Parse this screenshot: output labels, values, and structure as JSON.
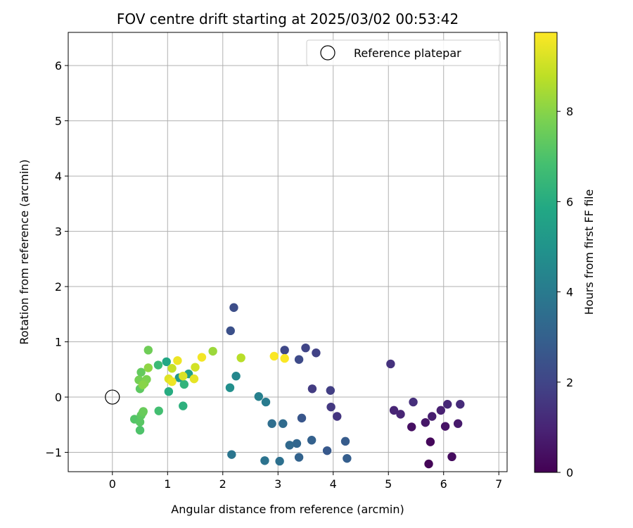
{
  "chart_data": {
    "type": "scatter",
    "title": "FOV centre drift starting at 2025/03/02 00:53:42",
    "xlabel": "Angular distance from reference (arcmin)",
    "ylabel": "Rotation from reference (arcmin)",
    "xlim": [
      -0.8,
      7.15
    ],
    "ylim": [
      -1.35,
      6.6
    ],
    "xticks": [
      0,
      1,
      2,
      3,
      4,
      5,
      6,
      7
    ],
    "yticks": [
      -1,
      0,
      1,
      2,
      3,
      4,
      5,
      6
    ],
    "grid": true,
    "legend": {
      "placement": "upper right",
      "entries": [
        "Reference platepar"
      ]
    },
    "reference_point": {
      "x": 0,
      "y": 0,
      "label": "Reference platepar"
    },
    "colorbar": {
      "label": "Hours from first FF file",
      "range": [
        0,
        9.75
      ],
      "ticks": [
        0,
        2,
        4,
        6,
        8
      ],
      "colormap": "viridis"
    },
    "points": [
      {
        "x": 5.73,
        "y": -1.21,
        "h": 0.1
      },
      {
        "x": 5.76,
        "y": -0.81,
        "h": 0.2
      },
      {
        "x": 6.15,
        "y": -1.08,
        "h": 0.3
      },
      {
        "x": 5.42,
        "y": -0.54,
        "h": 0.4
      },
      {
        "x": 6.03,
        "y": -0.53,
        "h": 0.5
      },
      {
        "x": 5.67,
        "y": -0.46,
        "h": 0.6
      },
      {
        "x": 6.26,
        "y": -0.48,
        "h": 0.7
      },
      {
        "x": 5.79,
        "y": -0.35,
        "h": 0.8
      },
      {
        "x": 5.95,
        "y": -0.24,
        "h": 0.9
      },
      {
        "x": 5.22,
        "y": -0.31,
        "h": 1.0
      },
      {
        "x": 5.1,
        "y": -0.24,
        "h": 1.0
      },
      {
        "x": 6.07,
        "y": -0.13,
        "h": 1.1
      },
      {
        "x": 6.3,
        "y": -0.13,
        "h": 1.2
      },
      {
        "x": 5.45,
        "y": -0.09,
        "h": 1.3
      },
      {
        "x": 5.04,
        "y": 0.6,
        "h": 1.4
      },
      {
        "x": 4.07,
        "y": -0.35,
        "h": 1.5
      },
      {
        "x": 3.96,
        "y": -0.18,
        "h": 1.6
      },
      {
        "x": 3.62,
        "y": 0.15,
        "h": 1.7
      },
      {
        "x": 3.95,
        "y": 0.12,
        "h": 1.8
      },
      {
        "x": 3.69,
        "y": 0.8,
        "h": 1.9
      },
      {
        "x": 3.5,
        "y": 0.89,
        "h": 2.0
      },
      {
        "x": 3.12,
        "y": 0.85,
        "h": 2.1
      },
      {
        "x": 3.38,
        "y": 0.68,
        "h": 2.2
      },
      {
        "x": 2.2,
        "y": 1.62,
        "h": 2.3
      },
      {
        "x": 2.14,
        "y": 1.2,
        "h": 2.4
      },
      {
        "x": 3.43,
        "y": -0.38,
        "h": 2.6
      },
      {
        "x": 3.89,
        "y": -0.97,
        "h": 2.7
      },
      {
        "x": 4.22,
        "y": -0.8,
        "h": 2.8
      },
      {
        "x": 4.25,
        "y": -1.11,
        "h": 2.9
      },
      {
        "x": 3.61,
        "y": -0.78,
        "h": 3.0
      },
      {
        "x": 3.38,
        "y": -1.09,
        "h": 3.1
      },
      {
        "x": 3.34,
        "y": -0.84,
        "h": 3.2
      },
      {
        "x": 3.21,
        "y": -0.87,
        "h": 3.3
      },
      {
        "x": 3.09,
        "y": -0.48,
        "h": 3.4
      },
      {
        "x": 2.89,
        "y": -0.48,
        "h": 3.5
      },
      {
        "x": 3.03,
        "y": -1.16,
        "h": 3.6
      },
      {
        "x": 2.76,
        "y": -1.15,
        "h": 3.7
      },
      {
        "x": 2.16,
        "y": -1.04,
        "h": 3.8
      },
      {
        "x": 2.78,
        "y": -0.09,
        "h": 4.0
      },
      {
        "x": 2.65,
        "y": 0.01,
        "h": 4.2
      },
      {
        "x": 2.24,
        "y": 0.38,
        "h": 4.5
      },
      {
        "x": 2.13,
        "y": 0.17,
        "h": 4.8
      },
      {
        "x": 1.21,
        "y": 0.35,
        "h": 5.2
      },
      {
        "x": 1.38,
        "y": 0.42,
        "h": 5.5
      },
      {
        "x": 0.98,
        "y": 0.64,
        "h": 5.8
      },
      {
        "x": 1.02,
        "y": 0.1,
        "h": 6.0
      },
      {
        "x": 1.28,
        "y": -0.16,
        "h": 6.2
      },
      {
        "x": 1.3,
        "y": 0.23,
        "h": 6.3
      },
      {
        "x": 0.83,
        "y": 0.58,
        "h": 6.6
      },
      {
        "x": 0.84,
        "y": -0.25,
        "h": 6.8
      },
      {
        "x": 0.5,
        "y": -0.6,
        "h": 7.0
      },
      {
        "x": 0.4,
        "y": -0.4,
        "h": 7.1
      },
      {
        "x": 0.5,
        "y": -0.45,
        "h": 7.2
      },
      {
        "x": 0.52,
        "y": -0.33,
        "h": 7.3
      },
      {
        "x": 0.55,
        "y": -0.28,
        "h": 7.4
      },
      {
        "x": 0.56,
        "y": -0.26,
        "h": 7.5
      },
      {
        "x": 0.5,
        "y": 0.15,
        "h": 7.3
      },
      {
        "x": 0.52,
        "y": 0.45,
        "h": 7.4
      },
      {
        "x": 0.65,
        "y": 0.85,
        "h": 7.6
      },
      {
        "x": 0.48,
        "y": 0.31,
        "h": 7.7
      },
      {
        "x": 0.62,
        "y": 0.32,
        "h": 7.8
      },
      {
        "x": 0.58,
        "y": 0.25,
        "h": 7.9
      },
      {
        "x": 0.55,
        "y": 0.22,
        "h": 8.0
      },
      {
        "x": 0.65,
        "y": 0.53,
        "h": 8.1
      },
      {
        "x": 1.82,
        "y": 0.83,
        "h": 8.3
      },
      {
        "x": 2.33,
        "y": 0.71,
        "h": 8.7
      },
      {
        "x": 1.08,
        "y": 0.52,
        "h": 8.9
      },
      {
        "x": 1.5,
        "y": 0.54,
        "h": 9.1
      },
      {
        "x": 1.28,
        "y": 0.38,
        "h": 9.2
      },
      {
        "x": 1.02,
        "y": 0.33,
        "h": 9.3
      },
      {
        "x": 1.48,
        "y": 0.33,
        "h": 9.4
      },
      {
        "x": 1.08,
        "y": 0.28,
        "h": 9.5
      },
      {
        "x": 1.18,
        "y": 0.66,
        "h": 9.5
      },
      {
        "x": 1.62,
        "y": 0.72,
        "h": 9.6
      },
      {
        "x": 2.93,
        "y": 0.74,
        "h": 9.7
      },
      {
        "x": 3.12,
        "y": 0.7,
        "h": 9.7
      }
    ]
  }
}
